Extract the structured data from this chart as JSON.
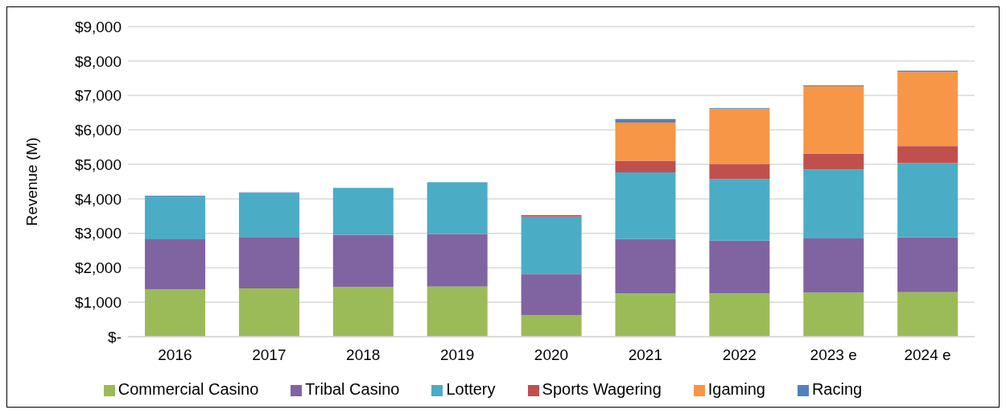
{
  "chart_data": {
    "type": "bar",
    "stacked": true,
    "ylabel": "Revenue (M)",
    "categories": [
      "2016",
      "2017",
      "2018",
      "2019",
      "2020",
      "2021",
      "2022",
      "2023 e",
      "2024 e"
    ],
    "series": [
      {
        "name": "Commercial Casino",
        "color": "#9bbb59",
        "values": [
          1380,
          1400,
          1445,
          1455,
          620,
          1265,
          1255,
          1280,
          1290
        ]
      },
      {
        "name": "Tribal Casino",
        "color": "#8064a2",
        "values": [
          1450,
          1490,
          1510,
          1525,
          1200,
          1570,
          1530,
          1570,
          1590
        ]
      },
      {
        "name": "Lottery",
        "color": "#4bacc6",
        "values": [
          1230,
          1280,
          1365,
          1500,
          1645,
          1935,
          1790,
          2005,
          2155
        ]
      },
      {
        "name": "Sports Wagering",
        "color": "#c0504d",
        "values": [
          0,
          0,
          0,
          0,
          35,
          340,
          440,
          460,
          500
        ]
      },
      {
        "name": "Igaming",
        "color": "#f79646",
        "values": [
          0,
          0,
          0,
          0,
          0,
          1110,
          1595,
          1955,
          2150
        ]
      },
      {
        "name": "Racing",
        "color": "#4f81bd",
        "values": [
          30,
          20,
          null,
          null,
          30,
          100,
          25,
          25,
          35
        ]
      }
    ],
    "ylim": [
      0,
      9000
    ],
    "yticks": [
      {
        "value": 0,
        "label": "$-"
      },
      {
        "value": 1000,
        "label": "$1,000"
      },
      {
        "value": 2000,
        "label": "$2,000"
      },
      {
        "value": 3000,
        "label": "$3,000"
      },
      {
        "value": 4000,
        "label": "$4,000"
      },
      {
        "value": 5000,
        "label": "$5,000"
      },
      {
        "value": 6000,
        "label": "$6,000"
      },
      {
        "value": 7000,
        "label": "$7,000"
      },
      {
        "value": 8000,
        "label": "$8,000"
      },
      {
        "value": 9000,
        "label": "$9,000"
      }
    ],
    "grid": "y",
    "legend": "bottom"
  }
}
